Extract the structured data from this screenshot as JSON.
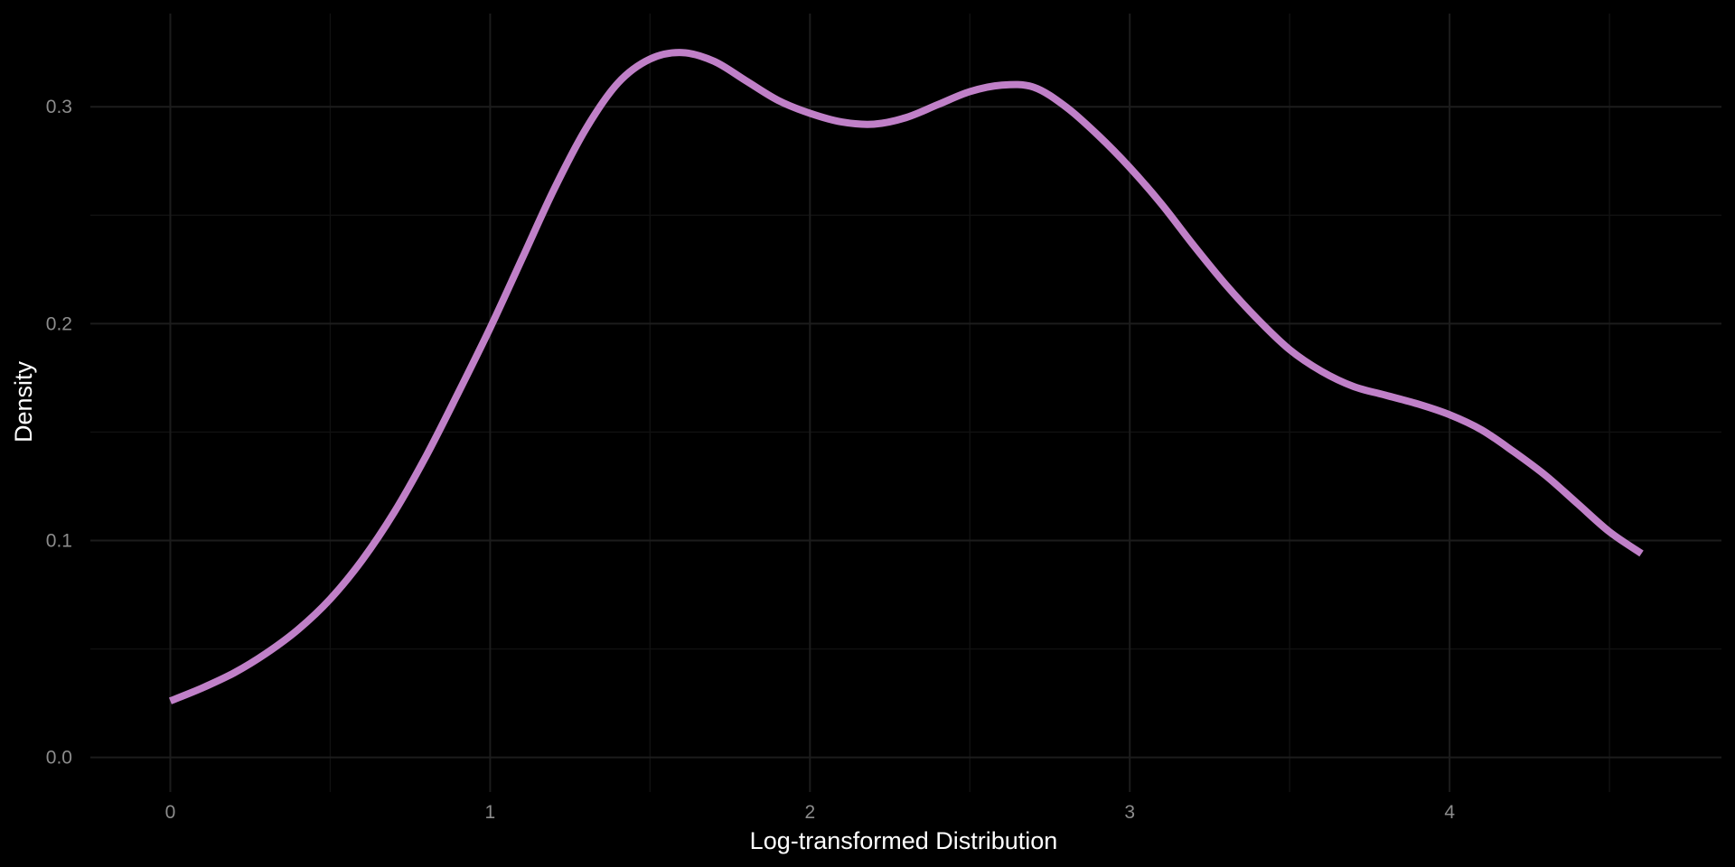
{
  "chart_data": {
    "type": "line",
    "title": "",
    "xlabel": "Log-transformed Distribution",
    "ylabel": "Density",
    "xlim": [
      -0.25,
      4.85
    ],
    "ylim": [
      -0.016,
      0.343
    ],
    "x_ticks": [
      0,
      1,
      2,
      3,
      4
    ],
    "x_tick_labels": [
      "0",
      "1",
      "2",
      "3",
      "4"
    ],
    "x_minor_ticks": [
      0.5,
      1.5,
      2.5,
      3.5,
      4.5
    ],
    "y_ticks": [
      0.0,
      0.1,
      0.2,
      0.3
    ],
    "y_tick_labels": [
      "0.0",
      "0.1",
      "0.2",
      "0.3"
    ],
    "y_minor_ticks": [
      0.05,
      0.15,
      0.25
    ],
    "grid": true,
    "legend": "none",
    "line_color": "#c080c8",
    "background_color": "#000000",
    "series": [
      {
        "x": [
          0.0,
          0.1,
          0.2,
          0.3,
          0.4,
          0.5,
          0.6,
          0.7,
          0.8,
          0.9,
          1.0,
          1.1,
          1.2,
          1.3,
          1.4,
          1.5,
          1.6,
          1.7,
          1.8,
          1.9,
          2.0,
          2.1,
          2.2,
          2.3,
          2.4,
          2.5,
          2.6,
          2.7,
          2.8,
          2.9,
          3.0,
          3.1,
          3.2,
          3.3,
          3.4,
          3.5,
          3.6,
          3.7,
          3.8,
          3.9,
          4.0,
          4.1,
          4.2,
          4.3,
          4.4,
          4.5,
          4.6
        ],
        "values": [
          0.026,
          0.032,
          0.039,
          0.048,
          0.059,
          0.073,
          0.091,
          0.113,
          0.139,
          0.168,
          0.198,
          0.23,
          0.262,
          0.29,
          0.311,
          0.322,
          0.325,
          0.321,
          0.312,
          0.303,
          0.297,
          0.293,
          0.292,
          0.295,
          0.301,
          0.307,
          0.31,
          0.309,
          0.3,
          0.287,
          0.272,
          0.255,
          0.236,
          0.218,
          0.202,
          0.188,
          0.178,
          0.171,
          0.167,
          0.163,
          0.158,
          0.151,
          0.141,
          0.13,
          0.117,
          0.104,
          0.094
        ]
      }
    ]
  }
}
